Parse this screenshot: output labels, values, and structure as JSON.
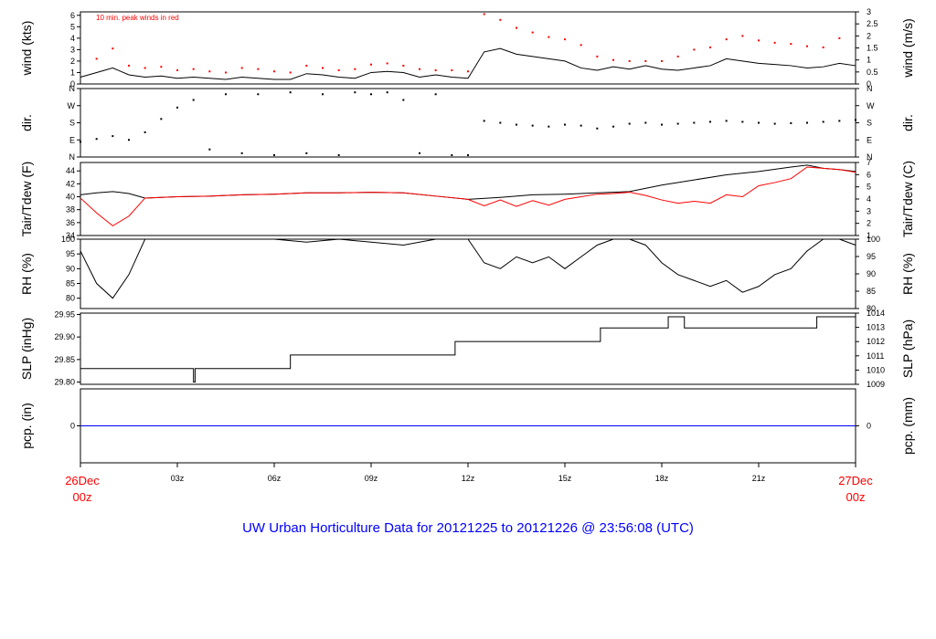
{
  "title": "UW Urban Horticulture Data for 20121225  to  20121226 @ 23:56:08  (UTC)",
  "x_axis": {
    "start_label": [
      "26Dec",
      "00z"
    ],
    "end_label": [
      "27Dec",
      "00z"
    ],
    "tick_labels": [
      "03z",
      "06z",
      "09z",
      "12z",
      "15z",
      "18z",
      "21z"
    ],
    "tick_hours": [
      3,
      6,
      9,
      12,
      15,
      18,
      21
    ],
    "range_hours": [
      0,
      24
    ]
  },
  "colors": {
    "axis": "#000000",
    "dew": "#ff0000",
    "peak": "#ff0000",
    "precip": "#0000ff",
    "title": "#0000ff",
    "date_labels": "#ff0000"
  },
  "chart_data": [
    {
      "id": "wind",
      "type": "line",
      "ylabel_left": "wind (kts)",
      "ylabel_right": "wind (m/s)",
      "annotation": "10 min. peak winds in red",
      "ylim": [
        0,
        6.3
      ],
      "left_ticks": [
        "0",
        "1",
        "2",
        "3",
        "4",
        "5",
        "6"
      ],
      "right_ticks": [
        "0",
        "0.5",
        "1",
        "1.5",
        "2",
        "2.5",
        "3"
      ],
      "series": [
        {
          "color": "#000000",
          "x": [
            0,
            0.5,
            1,
            1.5,
            2,
            2.5,
            3,
            3.5,
            4,
            4.5,
            5,
            5.5,
            6,
            6.5,
            7,
            7.5,
            8,
            8.5,
            9,
            9.5,
            10,
            10.5,
            11,
            11.5,
            12,
            12.5,
            13,
            13.5,
            14,
            14.5,
            15,
            15.5,
            16,
            16.5,
            17,
            17.5,
            18,
            18.5,
            19,
            19.5,
            20,
            20.5,
            21,
            21.5,
            22,
            22.5,
            23,
            23.5,
            24
          ],
          "values": [
            0.6,
            1.0,
            1.4,
            0.8,
            0.6,
            0.7,
            0.5,
            0.6,
            0.5,
            0.4,
            0.6,
            0.5,
            0.4,
            0.4,
            0.9,
            0.8,
            0.6,
            0.5,
            1.0,
            1.1,
            1.0,
            0.6,
            0.8,
            0.6,
            0.5,
            2.8,
            3.1,
            2.6,
            2.4,
            2.2,
            2.0,
            1.4,
            1.2,
            1.5,
            1.3,
            1.6,
            1.3,
            1.2,
            1.4,
            1.6,
            2.2,
            2.0,
            1.8,
            1.7,
            1.6,
            1.4,
            1.5,
            1.8,
            1.6
          ]
        },
        {
          "type": "scatter",
          "color": "#ff0000",
          "x": [
            0.5,
            1,
            1.5,
            2,
            2.5,
            3,
            3.5,
            4,
            4.5,
            5,
            5.5,
            6,
            6.5,
            7,
            7.5,
            8,
            8.5,
            9,
            9.5,
            10,
            10.5,
            11,
            11.5,
            12,
            12.5,
            13,
            13.5,
            14,
            14.5,
            15,
            15.5,
            16,
            16.5,
            17,
            17.5,
            18,
            18.5,
            19,
            19.5,
            20,
            20.5,
            21,
            21.5,
            22,
            22.5,
            23,
            23.5
          ],
          "values": [
            2.2,
            3.1,
            1.6,
            1.4,
            1.5,
            1.2,
            1.3,
            1.1,
            1.0,
            1.4,
            1.3,
            1.1,
            1.0,
            1.6,
            1.4,
            1.2,
            1.3,
            1.7,
            1.8,
            1.6,
            1.3,
            1.2,
            1.2,
            1.1,
            6.1,
            5.6,
            4.9,
            4.5,
            4.1,
            3.9,
            3.4,
            2.4,
            2.1,
            2.0,
            2.0,
            2.0,
            2.4,
            3.0,
            3.2,
            3.9,
            4.2,
            3.8,
            3.6,
            3.5,
            3.3,
            3.2,
            4.0
          ]
        }
      ]
    },
    {
      "id": "dir",
      "type": "scatter",
      "ylabel_left": "dir.",
      "ylabel_right": "dir.",
      "ylim": [
        0,
        360
      ],
      "left_ticks": [
        "N",
        "E",
        "S",
        "W",
        "N"
      ],
      "right_ticks": [
        "N",
        "E",
        "S",
        "W",
        "N"
      ],
      "series": [
        {
          "color": "#000000",
          "x": [
            0,
            0.5,
            1,
            1.5,
            2,
            2.5,
            3,
            3.5,
            4,
            4.5,
            5,
            5.5,
            6,
            6.5,
            7,
            7.5,
            8,
            8.5,
            9,
            9.5,
            10,
            10.5,
            11,
            11.5,
            12,
            12.5,
            13,
            13.5,
            14,
            14.5,
            15,
            15.5,
            16,
            16.5,
            17,
            17.5,
            18,
            18.5,
            19,
            19.5,
            20,
            20.5,
            21,
            21.5,
            22,
            22.5,
            23,
            23.5,
            24
          ],
          "values": [
            80,
            95,
            110,
            90,
            130,
            200,
            260,
            300,
            40,
            330,
            20,
            330,
            10,
            340,
            20,
            330,
            10,
            340,
            330,
            340,
            300,
            20,
            330,
            10,
            10,
            190,
            180,
            170,
            165,
            160,
            170,
            165,
            150,
            160,
            175,
            180,
            170,
            175,
            180,
            185,
            190,
            185,
            180,
            175,
            178,
            180,
            185,
            190,
            195
          ]
        }
      ]
    },
    {
      "id": "temp",
      "type": "line",
      "ylabel_left": "Tair/Tdew (F)",
      "ylabel_right": "Tair/Tdew (C)",
      "ylim": [
        34,
        45.3
      ],
      "left_ticks": [
        "34",
        "36",
        "38",
        "40",
        "42",
        "44"
      ],
      "right_ticks": [
        "1",
        "2",
        "3",
        "4",
        "5",
        "6",
        "7"
      ],
      "series": [
        {
          "color": "#000000",
          "x": [
            0,
            0.5,
            1,
            1.5,
            2,
            3,
            4,
            5,
            6,
            7,
            8,
            9,
            10,
            11,
            12,
            13,
            14,
            15,
            16,
            17,
            18,
            19,
            20,
            21,
            22,
            22.5,
            23,
            23.5,
            24
          ],
          "values": [
            40.3,
            40.6,
            40.8,
            40.5,
            39.8,
            40.0,
            40.1,
            40.3,
            40.4,
            40.6,
            40.6,
            40.7,
            40.6,
            40.1,
            39.6,
            39.9,
            40.3,
            40.4,
            40.6,
            40.8,
            41.8,
            42.6,
            43.4,
            43.9,
            44.6,
            44.9,
            44.4,
            44.2,
            43.9
          ]
        },
        {
          "color": "#ff0000",
          "x": [
            0,
            0.5,
            1,
            1.5,
            2,
            3,
            4,
            5,
            6,
            7,
            8,
            9,
            10,
            11,
            12,
            12.5,
            13,
            13.5,
            14,
            14.5,
            15,
            15.5,
            16,
            16.5,
            17,
            17.5,
            18,
            18.5,
            19,
            19.5,
            20,
            20.5,
            21,
            21.5,
            22,
            22.5,
            23,
            23.5,
            24
          ],
          "values": [
            39.8,
            37.5,
            35.5,
            37.0,
            39.8,
            40.0,
            40.1,
            40.3,
            40.4,
            40.6,
            40.6,
            40.7,
            40.6,
            40.1,
            39.6,
            38.6,
            39.5,
            38.5,
            39.4,
            38.7,
            39.6,
            40.0,
            40.4,
            40.5,
            40.7,
            40.2,
            39.5,
            39.0,
            39.3,
            39.0,
            40.3,
            40.0,
            41.7,
            42.2,
            42.8,
            44.6,
            44.4,
            44.2,
            43.8
          ]
        }
      ]
    },
    {
      "id": "rh",
      "type": "line",
      "ylabel_left": "RH (%)",
      "ylabel_right": "RH (%)",
      "ylim": [
        76.5,
        100
      ],
      "left_ticks": [
        "80",
        "85",
        "90",
        "95",
        "100"
      ],
      "right_ticks": [
        "80",
        "85",
        "90",
        "95",
        "100"
      ],
      "series": [
        {
          "color": "#000000",
          "x": [
            0,
            0.5,
            1,
            1.5,
            2,
            3,
            4,
            5,
            6,
            7,
            8,
            9,
            10,
            11,
            12,
            12.5,
            13,
            13.5,
            14,
            14.5,
            15,
            15.5,
            16,
            16.5,
            17,
            17.5,
            18,
            18.5,
            19,
            19.5,
            20,
            20.5,
            21,
            21.5,
            22,
            22.5,
            23,
            23.5,
            24
          ],
          "values": [
            96,
            85,
            80,
            88,
            100,
            100,
            100,
            100,
            100,
            99,
            100,
            99,
            98,
            100,
            100,
            92,
            90,
            94,
            92,
            94,
            90,
            94,
            98,
            100,
            100,
            98,
            92,
            88,
            86,
            84,
            86,
            82,
            84,
            88,
            90,
            96,
            100,
            100,
            98
          ]
        }
      ]
    },
    {
      "id": "slp",
      "type": "line",
      "ylabel_left": "SLP (inHg)",
      "ylabel_right": "SLP (hPa)",
      "ylim": [
        29.795,
        29.953
      ],
      "left_ticks": [
        "29.80",
        "29.85",
        "29.90",
        "29.95"
      ],
      "right_ticks": [
        "1009",
        "1010",
        "1011",
        "1012",
        "1013",
        "1014"
      ],
      "step": true,
      "series": [
        {
          "color": "#000000",
          "x": [
            0,
            3.45,
            3.5,
            3.55,
            6.5,
            11.6,
            16.1,
            18.2,
            18.7,
            22.8,
            24
          ],
          "values": [
            29.83,
            29.83,
            29.8,
            29.83,
            29.86,
            29.89,
            29.92,
            29.945,
            29.92,
            29.945,
            29.945
          ]
        }
      ]
    },
    {
      "id": "pcp",
      "type": "line",
      "ylabel_left": "pcp. (in)",
      "ylabel_right": "pcp. (mm)",
      "ylim": [
        -1,
        1
      ],
      "left_ticks": [
        "0"
      ],
      "right_ticks": [
        "0"
      ],
      "series": [
        {
          "color": "#0000ff",
          "x": [
            0,
            24
          ],
          "values": [
            0,
            0
          ]
        }
      ]
    }
  ]
}
